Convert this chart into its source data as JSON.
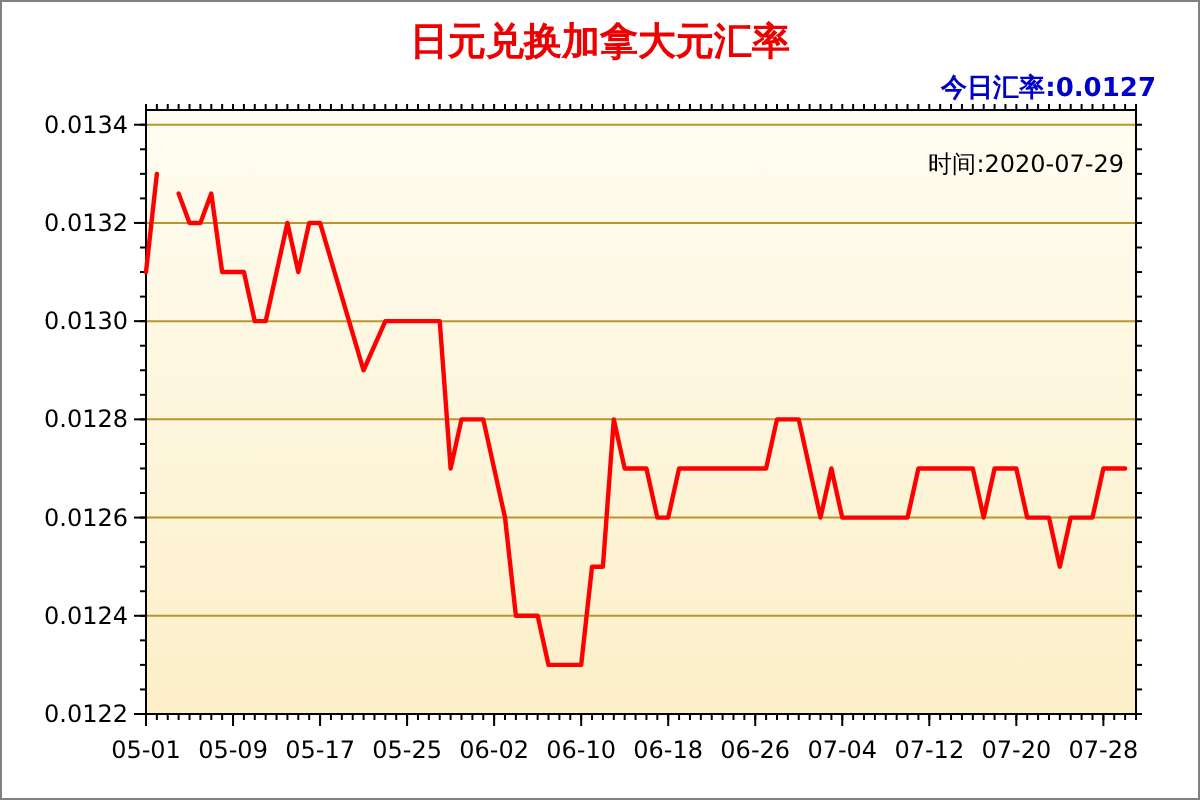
{
  "chart_data": {
    "type": "line",
    "title": "日元兑换加拿大元汇率",
    "annotations": [
      "今日汇率:0.0127",
      "时间:2020-07-29"
    ],
    "x": [
      "2020-05-01",
      "2020-05-02",
      "2020-05-03",
      "2020-05-04",
      "2020-05-05",
      "2020-05-06",
      "2020-05-07",
      "2020-05-08",
      "2020-05-10",
      "2020-05-11",
      "2020-05-12",
      "2020-05-14",
      "2020-05-15",
      "2020-05-16",
      "2020-05-17",
      "2020-05-21",
      "2020-05-23",
      "2020-05-28",
      "2020-05-29",
      "2020-05-30",
      "2020-06-01",
      "2020-06-03",
      "2020-06-04",
      "2020-06-06",
      "2020-06-07",
      "2020-06-10",
      "2020-06-11",
      "2020-06-12",
      "2020-06-13",
      "2020-06-14",
      "2020-06-16",
      "2020-06-17",
      "2020-06-18",
      "2020-06-19",
      "2020-06-27",
      "2020-06-28",
      "2020-06-30",
      "2020-07-02",
      "2020-07-03",
      "2020-07-04",
      "2020-07-10",
      "2020-07-11",
      "2020-07-16",
      "2020-07-17",
      "2020-07-18",
      "2020-07-20",
      "2020-07-21",
      "2020-07-23",
      "2020-07-24",
      "2020-07-25",
      "2020-07-27",
      "2020-07-28",
      "2020-07-30"
    ],
    "series": [
      {
        "color": "#ff0000",
        "values": [
          0.0131,
          0.0133,
          null,
          0.01326,
          0.0132,
          0.0132,
          0.01326,
          0.0131,
          0.0131,
          0.013,
          0.013,
          0.0132,
          0.0131,
          0.0132,
          0.0132,
          0.0129,
          0.013,
          0.013,
          0.0127,
          0.0128,
          0.0128,
          0.0126,
          0.0124,
          0.0124,
          0.0123,
          0.0123,
          0.0125,
          0.0125,
          0.0128,
          0.0127,
          0.0127,
          0.0126,
          0.0126,
          0.0127,
          0.0127,
          0.0128,
          0.0128,
          0.0126,
          0.0127,
          0.0126,
          0.0126,
          0.0127,
          0.0127,
          0.0126,
          0.0127,
          0.0127,
          0.0126,
          0.0126,
          0.0125,
          0.0126,
          0.0126,
          0.0127,
          0.0127
        ]
      }
    ],
    "xlim": [
      "2020-05-01",
      "2020-07-31"
    ],
    "xticks": [
      {
        "value": "2020-05-01",
        "label": "05-01"
      },
      {
        "value": "2020-05-09",
        "label": "05-09"
      },
      {
        "value": "2020-05-17",
        "label": "05-17"
      },
      {
        "value": "2020-05-25",
        "label": "05-25"
      },
      {
        "value": "2020-06-02",
        "label": "06-02"
      },
      {
        "value": "2020-06-10",
        "label": "06-10"
      },
      {
        "value": "2020-06-18",
        "label": "06-18"
      },
      {
        "value": "2020-06-26",
        "label": "06-26"
      },
      {
        "value": "2020-07-04",
        "label": "07-04"
      },
      {
        "value": "2020-07-12",
        "label": "07-12"
      },
      {
        "value": "2020-07-20",
        "label": "07-20"
      },
      {
        "value": "2020-07-28",
        "label": "07-28"
      }
    ],
    "ylim": [
      0.0122,
      0.01343
    ],
    "yticks": [
      {
        "value": 0.0122,
        "label": "0.0122"
      },
      {
        "value": 0.0124,
        "label": "0.0124"
      },
      {
        "value": 0.0126,
        "label": "0.0126"
      },
      {
        "value": 0.0128,
        "label": "0.0128"
      },
      {
        "value": 0.013,
        "label": "0.0130"
      },
      {
        "value": 0.0132,
        "label": "0.0132"
      },
      {
        "value": 0.0134,
        "label": "0.0134"
      }
    ],
    "grid": "y"
  }
}
